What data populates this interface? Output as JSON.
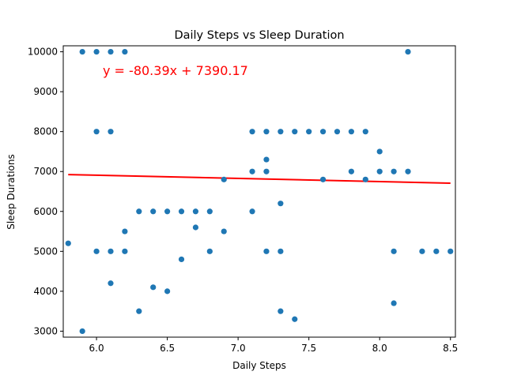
{
  "chart_data": {
    "type": "scatter",
    "title": "Daily Steps vs Sleep Duration",
    "xlabel": "Daily Steps",
    "ylabel": "Sleep Durations",
    "xlim": [
      5.765,
      8.535
    ],
    "ylim": [
      2850,
      10150
    ],
    "xticks": [
      6.0,
      6.5,
      7.0,
      7.5,
      8.0,
      8.5
    ],
    "xtick_labels": [
      "6.0",
      "6.5",
      "7.0",
      "7.5",
      "8.0",
      "8.5"
    ],
    "yticks": [
      3000,
      4000,
      5000,
      6000,
      7000,
      8000,
      9000,
      10000
    ],
    "ytick_labels": [
      "3000",
      "4000",
      "5000",
      "6000",
      "7000",
      "8000",
      "9000",
      "10000"
    ],
    "grid": false,
    "point_color": "#1f77b4",
    "line_color": "#ff0000",
    "regression": {
      "equation": "y = -80.39x + 7390.17",
      "slope": -80.39,
      "intercept": 7390.17,
      "x_range": [
        5.8,
        8.5
      ]
    },
    "points": [
      [
        5.8,
        5200
      ],
      [
        5.9,
        3000
      ],
      [
        5.9,
        10000
      ],
      [
        6.0,
        10000
      ],
      [
        6.0,
        8000
      ],
      [
        6.0,
        5000
      ],
      [
        6.1,
        10000
      ],
      [
        6.1,
        8000
      ],
      [
        6.1,
        5000
      ],
      [
        6.1,
        4200
      ],
      [
        6.2,
        10000
      ],
      [
        6.2,
        5500
      ],
      [
        6.2,
        5000
      ],
      [
        6.3,
        6000
      ],
      [
        6.3,
        3500
      ],
      [
        6.4,
        6000
      ],
      [
        6.4,
        4100
      ],
      [
        6.5,
        6000
      ],
      [
        6.5,
        4000
      ],
      [
        6.6,
        6000
      ],
      [
        6.6,
        4800
      ],
      [
        6.7,
        6000
      ],
      [
        6.7,
        5600
      ],
      [
        6.8,
        6000
      ],
      [
        6.8,
        5000
      ],
      [
        6.9,
        6800
      ],
      [
        6.9,
        5500
      ],
      [
        7.1,
        8000
      ],
      [
        7.1,
        7000
      ],
      [
        7.1,
        6000
      ],
      [
        7.2,
        8000
      ],
      [
        7.2,
        7300
      ],
      [
        7.2,
        7000
      ],
      [
        7.2,
        5000
      ],
      [
        7.3,
        8000
      ],
      [
        7.3,
        6200
      ],
      [
        7.3,
        5000
      ],
      [
        7.3,
        3500
      ],
      [
        7.4,
        8000
      ],
      [
        7.4,
        3300
      ],
      [
        7.5,
        8000
      ],
      [
        7.6,
        8000
      ],
      [
        7.6,
        6800
      ],
      [
        7.7,
        8000
      ],
      [
        7.8,
        8000
      ],
      [
        7.8,
        7000
      ],
      [
        7.9,
        8000
      ],
      [
        7.9,
        6800
      ],
      [
        8.0,
        7500
      ],
      [
        8.0,
        7000
      ],
      [
        8.1,
        7000
      ],
      [
        8.1,
        5000
      ],
      [
        8.1,
        3700
      ],
      [
        8.2,
        10000
      ],
      [
        8.2,
        7000
      ],
      [
        8.3,
        5000
      ],
      [
        8.4,
        5000
      ],
      [
        8.5,
        5000
      ]
    ]
  }
}
